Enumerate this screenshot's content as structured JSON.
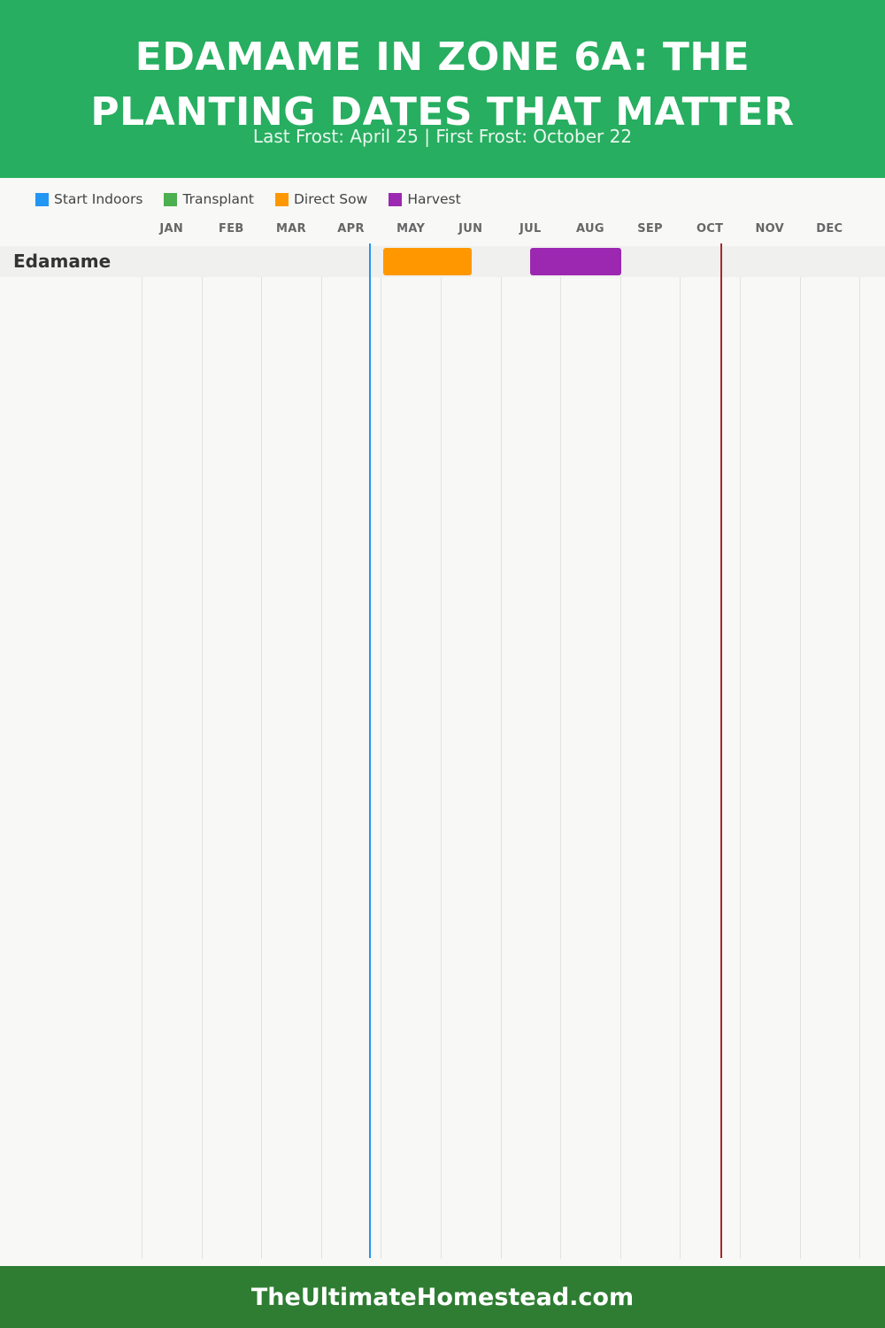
{
  "header": {
    "title_line1": "EDAMAME IN ZONE 6A: THE",
    "title_line2": "PLANTING DATES THAT MATTER",
    "subtitle": "Last Frost: April 25 | First Frost: October 22",
    "background_color": "#27ae60"
  },
  "legend": [
    {
      "label": "Start Indoors",
      "color": "#2196f3"
    },
    {
      "label": "Transplant",
      "color": "#4caf50"
    },
    {
      "label": "Direct Sow",
      "color": "#ff9800"
    },
    {
      "label": "Harvest",
      "color": "#9c27b0"
    }
  ],
  "chart_data": {
    "type": "gantt",
    "months": [
      "JAN",
      "FEB",
      "MAR",
      "APR",
      "MAY",
      "JUN",
      "JUL",
      "AUG",
      "SEP",
      "OCT",
      "NOV",
      "DEC"
    ],
    "rows": [
      {
        "crop": "Edamame",
        "tasks": [
          {
            "activity": "Direct Sow",
            "start": "May 1",
            "end": "June 15",
            "color": "#ff9800"
          },
          {
            "activity": "Harvest",
            "start": "July 15",
            "end": "August 31",
            "color": "#9c27b0"
          }
        ]
      }
    ],
    "frost_markers": [
      {
        "label": "Last Frost",
        "date": "April 25",
        "month_index": 3,
        "day": 25,
        "color": "#2196f3"
      },
      {
        "label": "First Frost",
        "date": "October 22",
        "month_index": 9,
        "day": 22,
        "color": "#a52a2a"
      }
    ]
  },
  "footer": {
    "text": "TheUltimateHomestead.com",
    "background_color": "#2e7d32"
  }
}
